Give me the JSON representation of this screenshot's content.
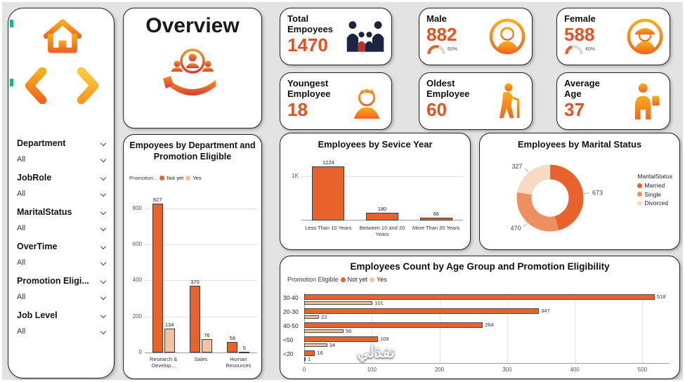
{
  "watermark": {
    "text": "نفذلي"
  },
  "sidebar": {
    "filters": [
      {
        "label": "Department",
        "value": "All"
      },
      {
        "label": "JobRole",
        "value": "All"
      },
      {
        "label": "MaritalStatus",
        "value": "All"
      },
      {
        "label": "OverTime",
        "value": "All"
      },
      {
        "label": "Promotion Eligi...",
        "value": "All"
      },
      {
        "label": "Job Level",
        "value": "All"
      }
    ]
  },
  "overview": {
    "title": "Overview"
  },
  "kpis": [
    {
      "label": "Total Empoyees",
      "value": "1470"
    },
    {
      "label": "Male",
      "value": "882",
      "pct": "60%"
    },
    {
      "label": "Female",
      "value": "588",
      "pct": "40%"
    },
    {
      "label": "Youngest Employee",
      "value": "18"
    },
    {
      "label": "Oldest Employee",
      "value": "60"
    },
    {
      "label": "Average Age",
      "value": "37"
    }
  ],
  "colors": {
    "not_yet": "#E8622C",
    "yes": "#F2C3A2",
    "kpi_value": "#E8511E"
  },
  "chart_data": [
    {
      "type": "bar",
      "title": "Empoyees by Department and Promotion Eligible",
      "legend_title": "Promotion...",
      "legend_position": "top-left",
      "categories": [
        "Research & Develop...",
        "Sales",
        "Human Resources"
      ],
      "series": [
        {
          "name": "Not yet",
          "color": "#E8622C",
          "values": [
            827,
            370,
            58
          ]
        },
        {
          "name": "Yes",
          "color": "#F2C3A2",
          "values": [
            134,
            76,
            5
          ]
        }
      ],
      "y_ticks": [
        0,
        200,
        400,
        600,
        800
      ],
      "ylim": [
        0,
        920
      ],
      "grid": true
    },
    {
      "type": "bar",
      "title": "Employees by Sevice Year",
      "categories": [
        "Less Than 10 Years",
        "Between 10 and 20 Years",
        "More Than 20 Years"
      ],
      "values": [
        1224,
        180,
        66
      ],
      "color": "#E8622C",
      "y_ticks": [
        {
          "label": "1K",
          "value": 1000
        }
      ],
      "ylim": [
        0,
        1300
      ],
      "grid": true
    },
    {
      "type": "pie",
      "title": "Employees by Marital Status",
      "legend_title": "MaritalStatus",
      "legend_position": "right",
      "slices": [
        {
          "label": "Married",
          "value": 673,
          "color": "#E8622C"
        },
        {
          "label": "Single",
          "value": 470,
          "color": "#EE8F5F"
        },
        {
          "label": "Divorced",
          "value": 327,
          "color": "#F7D9C4"
        }
      ]
    },
    {
      "type": "hbar",
      "title": "Employees Count by Age Group and Promotion Eligibility",
      "legend_title": "Promotion Eligible",
      "legend_position": "top-left",
      "categories": [
        "30-40",
        "20-30",
        "40-50",
        "<50",
        "<20"
      ],
      "series": [
        {
          "name": "Not yet",
          "color": "#E8622C",
          "values": [
            518,
            347,
            264,
            109,
            16
          ]
        },
        {
          "name": "Yes",
          "color": "#F2C3A2",
          "values": [
            101,
            22,
            58,
            34,
            1
          ]
        }
      ],
      "x_ticks": [
        0,
        100,
        200,
        300,
        400,
        500
      ],
      "xlim": [
        0,
        540
      ],
      "grid": true
    }
  ]
}
